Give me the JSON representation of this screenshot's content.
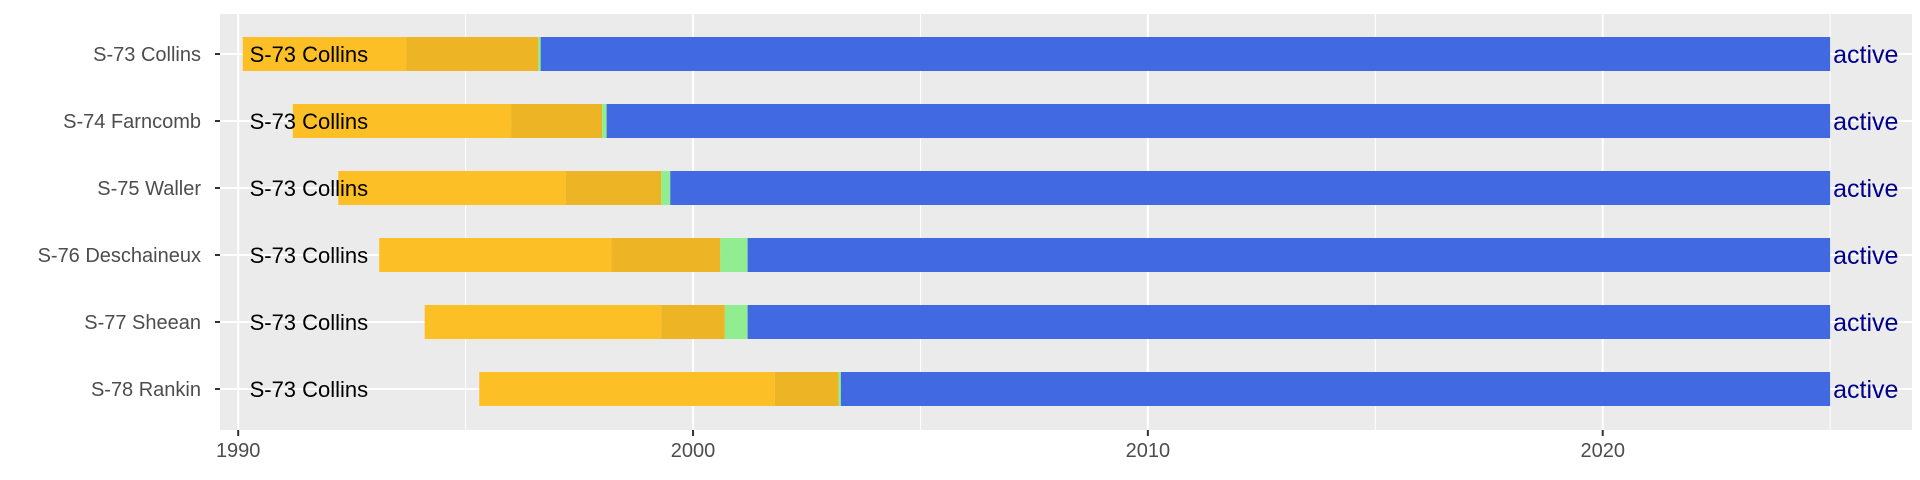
{
  "chart_data": {
    "type": "bar",
    "orientation": "horizontal-timeline",
    "title": "",
    "xlabel": "",
    "ylabel": "",
    "xlim": [
      1989.6,
      2026.8
    ],
    "x_ticks": [
      1990,
      2000,
      2010,
      2020
    ],
    "x_minor_ticks": [
      1995,
      2005,
      2015,
      2025
    ],
    "grid": true,
    "colors": {
      "panel": "#ebebeb",
      "grid": "#ffffff",
      "phase1": "#fdbf26",
      "phase2": "#edb526",
      "phase3": "#90ee90",
      "active": "#4169e1",
      "status_text": "#00008b"
    },
    "categories": [
      "S-73 Collins",
      "S-74 Farncomb",
      "S-75 Waller",
      "S-76 Deschaineux",
      "S-77 Sheean",
      "S-78 Rankin"
    ],
    "bar_label": "S-73 Collins",
    "bar_label_x": 1990.25,
    "status_label": "active",
    "boats": [
      {
        "name": "S-73 Collins",
        "start": 1990.1,
        "phase2_start": 1993.7,
        "phase3_start": 1996.6,
        "active_start": 1996.65,
        "end": 2025.0
      },
      {
        "name": "S-74 Farncomb",
        "start": 1991.2,
        "phase2_start": 1996.0,
        "phase3_start": 1998.0,
        "active_start": 1998.1,
        "end": 2025.0
      },
      {
        "name": "S-75 Waller",
        "start": 1992.2,
        "phase2_start": 1997.2,
        "phase3_start": 1999.3,
        "active_start": 1999.5,
        "end": 2025.0
      },
      {
        "name": "S-76 Deschaineux",
        "start": 1993.1,
        "phase2_start": 1998.2,
        "phase3_start": 2000.6,
        "active_start": 2001.2,
        "end": 2025.0
      },
      {
        "name": "S-77 Sheean",
        "start": 1994.1,
        "phase2_start": 1999.3,
        "phase3_start": 2000.7,
        "active_start": 2001.2,
        "end": 2025.0
      },
      {
        "name": "S-78 Rankin",
        "start": 1995.3,
        "phase2_start": 2001.8,
        "phase3_start": 2003.2,
        "active_start": 2003.25,
        "end": 2025.0
      }
    ]
  }
}
